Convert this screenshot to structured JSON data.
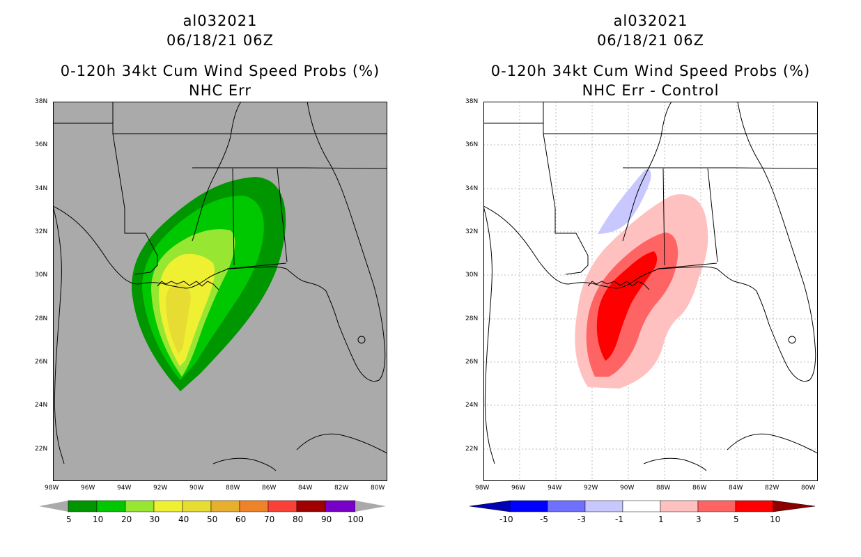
{
  "panels": [
    {
      "id": "left",
      "title_line1": "al032021",
      "title_line2": "06/18/21 06Z",
      "title_line3": "0-120h 34kt Cum Wind Speed Probs (%)",
      "title_line4": "NHC Err",
      "background": "#aaaaaa",
      "colorbar_labels": [
        "5",
        "10",
        "20",
        "30",
        "40",
        "50",
        "60",
        "70",
        "80",
        "90",
        "100"
      ],
      "colorbar_colors": [
        "#009600",
        "#00c800",
        "#96e632",
        "#f0f032",
        "#e6dc32",
        "#e6af2d",
        "#f08228",
        "#fa4137",
        "#a00000",
        "#7800c8"
      ]
    },
    {
      "id": "right",
      "title_line1": "al032021",
      "title_line2": "06/18/21 06Z",
      "title_line3": "0-120h 34kt Cum Wind Speed Probs (%)",
      "title_line4": "NHC Err - Control",
      "background": "#ffffff",
      "colorbar_labels": [
        "-10",
        "-5",
        "-3",
        "-1",
        "1",
        "3",
        "5",
        "10"
      ],
      "colorbar_colors": [
        "#0000b4",
        "#0000ff",
        "#7070ff",
        "#c8c8ff",
        "#ffffff",
        "#ffc0c0",
        "#ff6464",
        "#ff0000",
        "#8c0000"
      ]
    }
  ],
  "axes": {
    "lat_labels": [
      "38N",
      "36N",
      "34N",
      "32N",
      "30N",
      "28N",
      "26N",
      "24N",
      "22N"
    ],
    "lon_labels": [
      "98W",
      "96W",
      "94W",
      "92W",
      "90W",
      "88W",
      "86W",
      "84W",
      "82W",
      "80W"
    ]
  }
}
